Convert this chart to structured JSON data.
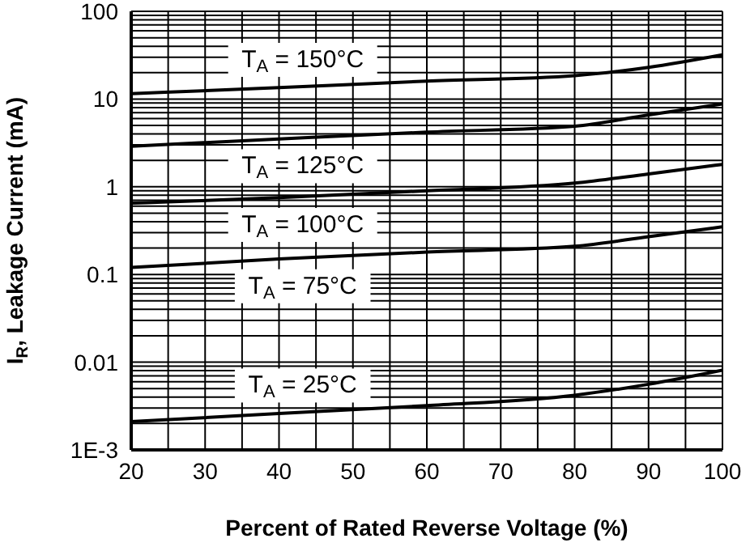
{
  "chart_data": {
    "type": "line",
    "xlabel": "Percent of Rated Reverse Voltage (%)",
    "ylabel": "I$_{R}$, Leakage Current (mA)",
    "x": [
      20,
      40,
      60,
      80,
      90,
      100
    ],
    "series": [
      {
        "name": "T$_{A}$ = 150°C",
        "color": "#000000",
        "values": [
          11.5,
          13.5,
          16,
          18.5,
          23,
          32
        ]
      },
      {
        "name": "T$_{A}$ = 125°C",
        "color": "#000000",
        "values": [
          2.9,
          3.5,
          4.2,
          4.9,
          6.6,
          8.8
        ]
      },
      {
        "name": "T$_{A}$ = 100°C",
        "color": "#000000",
        "values": [
          0.65,
          0.75,
          0.9,
          1.1,
          1.4,
          1.8
        ]
      },
      {
        "name": "T$_{A}$ = 75°C",
        "color": "#000000",
        "values": [
          0.12,
          0.15,
          0.18,
          0.21,
          0.27,
          0.35
        ]
      },
      {
        "name": "T$_{A}$ = 25°C",
        "color": "#000000",
        "values": [
          0.0021,
          0.0026,
          0.0032,
          0.0042,
          0.0056,
          0.0081
        ]
      }
    ],
    "log": "y",
    "grid": true,
    "marker": "none",
    "line_style": "solid",
    "legend": false,
    "xlim": [
      20,
      100
    ],
    "xticks": [
      20,
      {
        "value": 25,
        "label": null
      },
      30,
      {
        "value": 35,
        "label": null
      },
      40,
      {
        "value": 45,
        "label": null
      },
      50,
      {
        "value": 55,
        "label": null
      },
      60,
      {
        "value": 65,
        "label": null
      },
      70,
      {
        "value": 75,
        "label": null
      },
      80,
      {
        "value": 85,
        "label": null
      },
      90,
      {
        "value": 95,
        "label": null
      },
      100
    ],
    "ylim": [
      0.001,
      100
    ],
    "yticks": [
      {
        "value": 0.001,
        "label": "1E-3"
      },
      {
        "value": 0.002,
        "label": null
      },
      {
        "value": 0.003,
        "label": null
      },
      {
        "value": 0.004,
        "label": null
      },
      {
        "value": 0.005,
        "label": null
      },
      {
        "value": 0.006,
        "label": null
      },
      {
        "value": 0.007,
        "label": null
      },
      {
        "value": 0.008,
        "label": null
      },
      {
        "value": 0.009,
        "label": null
      },
      0.01,
      {
        "value": 0.02,
        "label": null
      },
      {
        "value": 0.03,
        "label": null
      },
      {
        "value": 0.04,
        "label": null
      },
      {
        "value": 0.05,
        "label": null
      },
      {
        "value": 0.06,
        "label": null
      },
      {
        "value": 0.07,
        "label": null
      },
      {
        "value": 0.08,
        "label": null
      },
      {
        "value": 0.09,
        "label": null
      },
      0.1,
      {
        "value": 0.2,
        "label": null
      },
      {
        "value": 0.3,
        "label": null
      },
      {
        "value": 0.4,
        "label": null
      },
      {
        "value": 0.5,
        "label": null
      },
      {
        "value": 0.6,
        "label": null
      },
      {
        "value": 0.7,
        "label": null
      },
      {
        "value": 0.8,
        "label": null
      },
      {
        "value": 0.9,
        "label": null
      },
      1,
      {
        "value": 2,
        "label": null
      },
      {
        "value": 3,
        "label": null
      },
      {
        "value": 4,
        "label": null
      },
      {
        "value": 5,
        "label": null
      },
      {
        "value": 6,
        "label": null
      },
      {
        "value": 7,
        "label": null
      },
      {
        "value": 8,
        "label": null
      },
      {
        "value": 9,
        "label": null
      },
      10,
      {
        "value": 20,
        "label": null
      },
      {
        "value": 30,
        "label": null
      },
      {
        "value": 40,
        "label": null
      },
      {
        "value": 50,
        "label": null
      },
      {
        "value": 60,
        "label": null
      },
      {
        "value": 70,
        "label": null
      },
      {
        "value": 80,
        "label": null
      },
      {
        "value": 90,
        "label": null
      },
      100
    ]
  }
}
